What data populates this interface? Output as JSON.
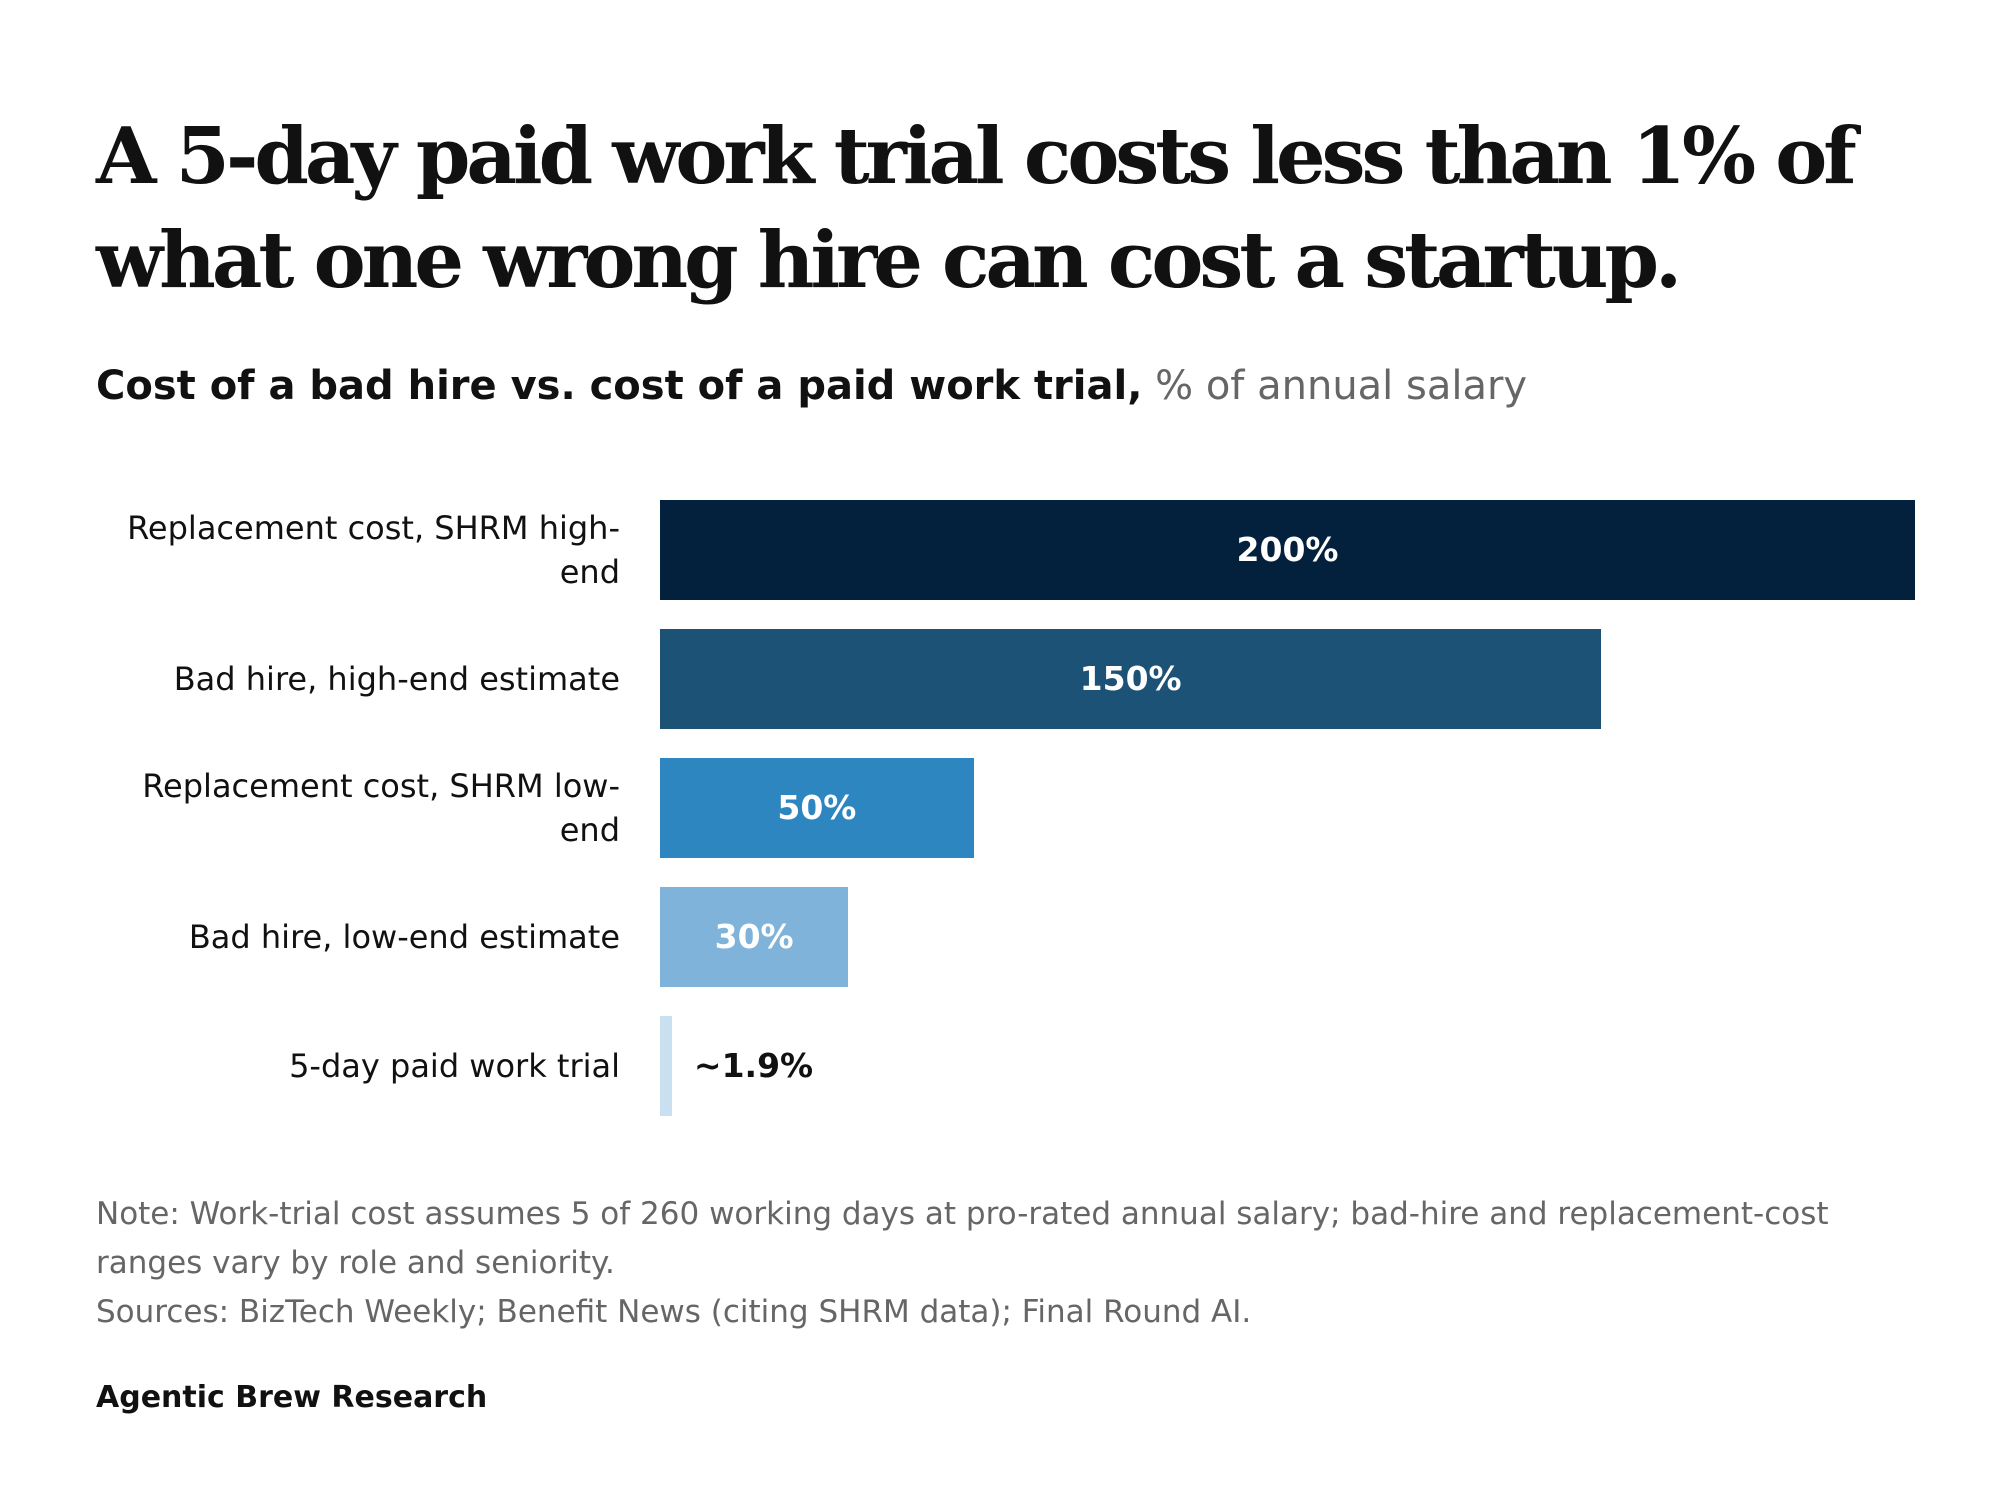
{
  "headline": "A 5-day paid work trial costs less than 1% of what one wrong hire can cost a startup.",
  "subtitle": {
    "bold": "Cost of a bad hire vs. cost of a paid work trial,",
    "unit": " % of annual salary"
  },
  "chart_data": {
    "type": "bar",
    "orientation": "horizontal",
    "categories": [
      "Replacement cost, SHRM high-end",
      "Bad hire, high-end estimate",
      "Replacement cost, SHRM low-end",
      "Bad hire, low-end estimate",
      "5-day paid work trial"
    ],
    "values": [
      200,
      150,
      50,
      30,
      1.9
    ],
    "value_labels": [
      "200%",
      "150%",
      "50%",
      "30%",
      "~1.9%"
    ],
    "colors": [
      "#03203d",
      "#1b5276",
      "#2e86c1",
      "#7fb3d9",
      "#c9e0f0"
    ],
    "xlim": [
      0,
      200
    ],
    "grid": false,
    "legend": "none"
  },
  "note": "Note: Work-trial cost assumes 5 of 260 working days at pro-rated annual salary; bad-hire and replacement-cost ranges vary by role and seniority.",
  "sources": "Sources: BizTech Weekly; Benefit News (citing SHRM data); Final Round AI.",
  "byline": "Agentic Brew Research"
}
